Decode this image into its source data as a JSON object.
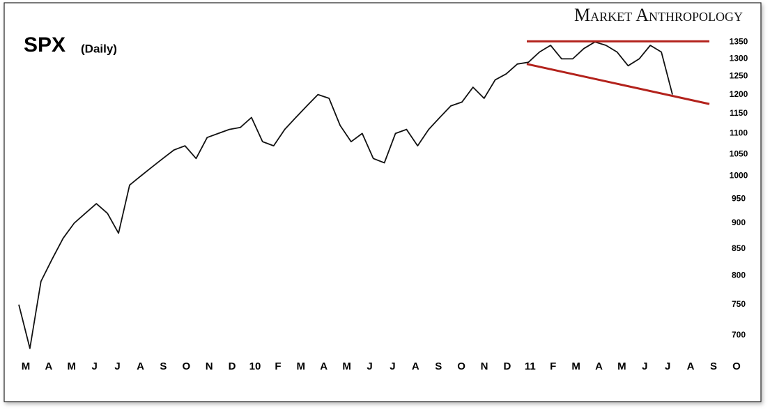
{
  "chart_data": {
    "type": "line",
    "title": "SPX",
    "subtitle": "(Daily)",
    "brand": "Market Anthropology",
    "log_scale": true,
    "ylim": [
      669,
      1460
    ],
    "yticks": [
      700,
      750,
      800,
      850,
      900,
      950,
      1000,
      1050,
      1100,
      1150,
      1200,
      1250,
      1300,
      1350
    ],
    "x_labels": [
      "M",
      "A",
      "M",
      "J",
      "J",
      "A",
      "S",
      "O",
      "N",
      "D",
      "10",
      "F",
      "M",
      "A",
      "M",
      "J",
      "J",
      "A",
      "S",
      "O",
      "N",
      "D",
      "11",
      "F",
      "M",
      "A",
      "M",
      "J",
      "J",
      "A",
      "S",
      "O"
    ],
    "x_label_colors": [
      "#000",
      "#000",
      "#000",
      "#000",
      "#000",
      "#000",
      "#000",
      "#000",
      "#000",
      "#000",
      "#b00000",
      "#000",
      "#000",
      "#000",
      "#000",
      "#000",
      "#000",
      "#000",
      "#000",
      "#000",
      "#000",
      "#000",
      "#b00000",
      "#000",
      "#000",
      "#000",
      "#000",
      "#000",
      "#000",
      "#000",
      "#000",
      "#000"
    ],
    "series": [
      {
        "name": "SPX",
        "color": "#111111",
        "values": [
          750,
          680,
          790,
          830,
          870,
          900,
          920,
          940,
          920,
          880,
          980,
          1000,
          1020,
          1040,
          1060,
          1070,
          1040,
          1090,
          1100,
          1110,
          1115,
          1140,
          1080,
          1070,
          1110,
          1140,
          1170,
          1200,
          1190,
          1120,
          1080,
          1100,
          1040,
          1030,
          1100,
          1110,
          1070,
          1110,
          1140,
          1170,
          1180,
          1220,
          1190,
          1240,
          1257,
          1285,
          1290,
          1320,
          1340,
          1300,
          1300,
          1330,
          1350,
          1340,
          1320,
          1280,
          1300,
          1340,
          1320,
          1200
        ]
      }
    ],
    "trendlines": [
      {
        "color": "#b3221c",
        "values": [
          1352,
          1352
        ]
      },
      {
        "color": "#b3221c",
        "values": [
          1285,
          1175
        ]
      }
    ]
  }
}
